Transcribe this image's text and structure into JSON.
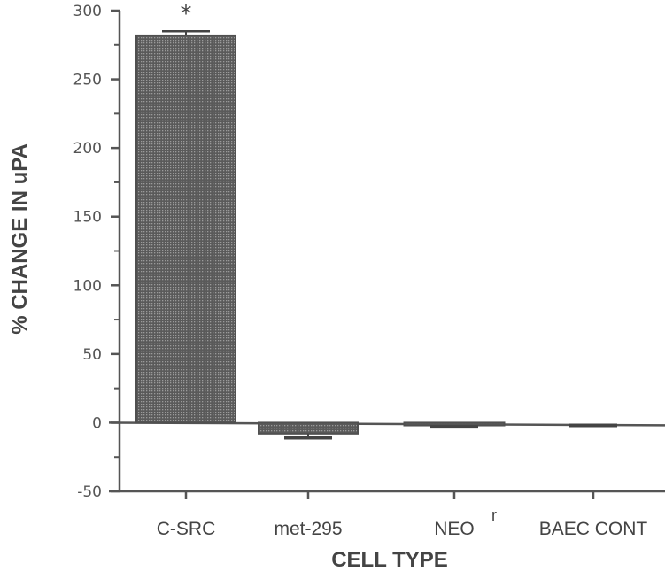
{
  "chart_data": {
    "type": "bar",
    "title": "",
    "xlabel": "CELL TYPE",
    "ylabel": "% CHANGE IN uPA",
    "categories": [
      "C-SRC",
      "met-295",
      "NEO r",
      "BAEC CONT"
    ],
    "category_labels": [
      {
        "main": "C-SRC",
        "sup": ""
      },
      {
        "main": "met-295",
        "sup": ""
      },
      {
        "main": "NEO",
        "sup": "r"
      },
      {
        "main": "BAEC CONT",
        "sup": ""
      }
    ],
    "values": [
      282,
      -8,
      -2,
      -1
    ],
    "error_bars": [
      3,
      3,
      1,
      1
    ],
    "annotations": [
      {
        "category": "C-SRC",
        "text": "*"
      }
    ],
    "ylim": [
      -50,
      300
    ],
    "yticks": [
      -50,
      0,
      50,
      100,
      150,
      200,
      250,
      300
    ],
    "ytick_labels": [
      "-50",
      "0",
      "50",
      "100",
      "150",
      "200",
      "250",
      "300"
    ],
    "grid": false,
    "legend": null
  }
}
